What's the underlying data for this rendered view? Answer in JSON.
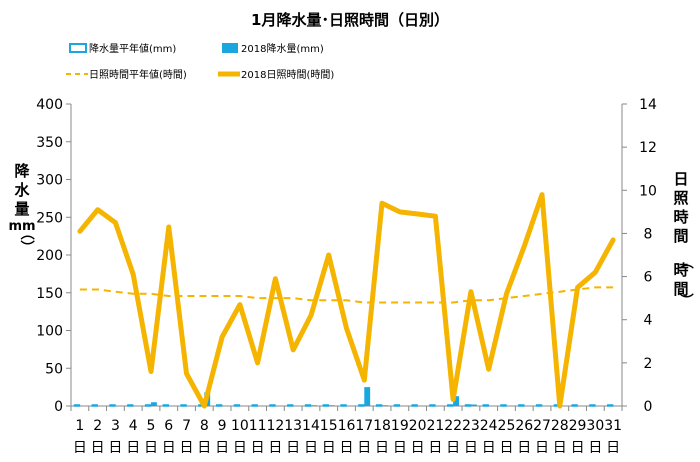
{
  "chart_data": {
    "type": "bar+line",
    "title": "1月降水量･日照時間（日別）",
    "ylabel_left": "降水量（mm）",
    "ylabel_right": "日照時間（時間）",
    "ylim_left": [
      0,
      400
    ],
    "yticks_left": [
      0,
      50,
      100,
      150,
      200,
      250,
      300,
      350,
      400
    ],
    "ylim_right": [
      0,
      14
    ],
    "yticks_right": [
      0,
      2,
      4,
      6,
      8,
      10,
      12,
      14
    ],
    "categories": [
      "1",
      "2",
      "3",
      "4",
      "5",
      "6",
      "7",
      "8",
      "9",
      "10",
      "11",
      "12",
      "13",
      "14",
      "15",
      "16",
      "17",
      "18",
      "19",
      "20",
      "21",
      "22",
      "23",
      "24",
      "25",
      "26",
      "27",
      "28",
      "29",
      "30",
      "31"
    ],
    "category_suffix": "日",
    "grid": false,
    "legend_position": "top",
    "series": [
      {
        "name": "降水量平年値(mm)",
        "type": "bar",
        "axis": "left",
        "style": "outline",
        "color": "#1aa7e0",
        "values": [
          2,
          2,
          2,
          2,
          2,
          2,
          2,
          2,
          2,
          2,
          2,
          2,
          2,
          2,
          2,
          2,
          2,
          2,
          2,
          2,
          2,
          2,
          2,
          2,
          2,
          2,
          2,
          2,
          2,
          2,
          2
        ]
      },
      {
        "name": "2018降水量(mm)",
        "type": "bar",
        "axis": "left",
        "style": "filled",
        "color": "#1aa7e0",
        "values": [
          0,
          0,
          0,
          0,
          5,
          0,
          0,
          18,
          0,
          0,
          0,
          0,
          0,
          1,
          1,
          0,
          25,
          1,
          0,
          0,
          0,
          13,
          2,
          0,
          0,
          0,
          0,
          0,
          0,
          0,
          0
        ]
      },
      {
        "name": "日照時間平年値(時間)",
        "type": "line",
        "axis": "right",
        "style": "dashed",
        "color": "#f5b400",
        "values": [
          5.4,
          5.4,
          5.3,
          5.2,
          5.2,
          5.1,
          5.1,
          5.1,
          5.1,
          5.1,
          5.0,
          5.0,
          5.0,
          4.9,
          4.9,
          4.9,
          4.8,
          4.8,
          4.8,
          4.8,
          4.8,
          4.8,
          4.9,
          4.9,
          5.0,
          5.1,
          5.2,
          5.3,
          5.4,
          5.5,
          5.5
        ]
      },
      {
        "name": "2018日照時間(時間)",
        "type": "line",
        "axis": "right",
        "style": "solid",
        "color": "#f5b400",
        "values": [
          8.1,
          9.1,
          8.5,
          6.1,
          1.6,
          8.3,
          1.5,
          0,
          3.2,
          4.7,
          2,
          5.9,
          2.6,
          4.2,
          7,
          3.6,
          1.2,
          9.4,
          9,
          8.9,
          8.8,
          0.3,
          5.3,
          1.7,
          5.2,
          7.4,
          9.8,
          0,
          5.5,
          6.2,
          7.7
        ]
      }
    ]
  }
}
